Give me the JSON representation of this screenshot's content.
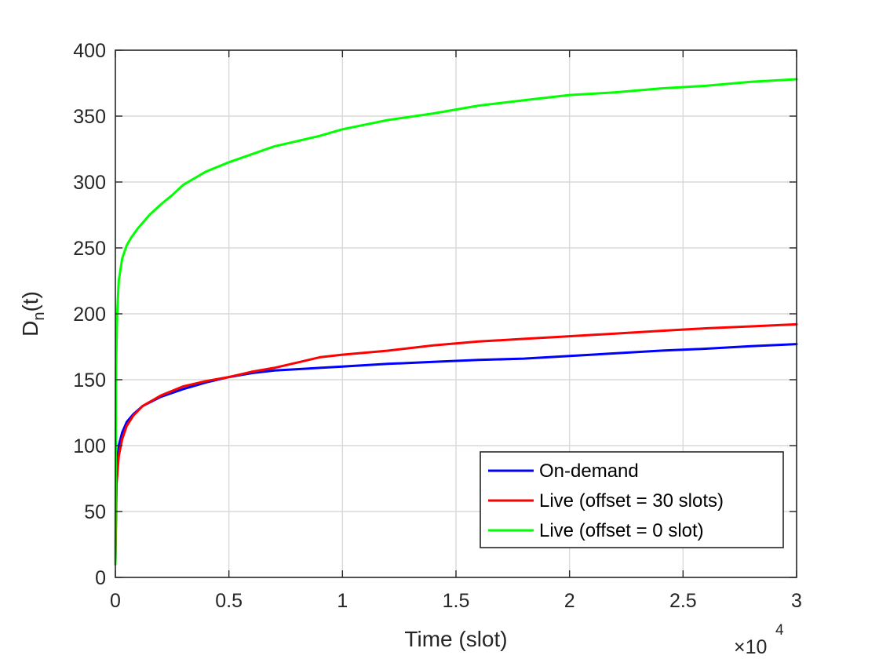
{
  "chart_data": {
    "type": "line",
    "xlabel": "Time (slot)",
    "ylabel_main": "D",
    "ylabel_sub": "n",
    "ylabel_tail": "(t)",
    "x_multiplier_base": "×10",
    "x_multiplier_exp": "4",
    "xlim": [
      0,
      30000
    ],
    "ylim": [
      0,
      400
    ],
    "xticks": [
      0,
      5000,
      10000,
      15000,
      20000,
      25000,
      30000
    ],
    "xtick_labels": [
      "0",
      "0.5",
      "1",
      "1.5",
      "2",
      "2.5",
      "3"
    ],
    "yticks": [
      0,
      50,
      100,
      150,
      200,
      250,
      300,
      350,
      400
    ],
    "ytick_labels": [
      "0",
      "50",
      "100",
      "150",
      "200",
      "250",
      "300",
      "350",
      "400"
    ],
    "grid": true,
    "legend_position": "bottom-right",
    "series": [
      {
        "name": "On-demand",
        "color": "#0000ff",
        "x": [
          0,
          50,
          150,
          300,
          500,
          800,
          1200,
          2000,
          3000,
          4000,
          5000,
          6000,
          7000,
          8000,
          9000,
          10000,
          12000,
          14000,
          16000,
          18000,
          20000,
          22000,
          24000,
          26000,
          28000,
          30000
        ],
        "y": [
          10,
          80,
          100,
          110,
          118,
          124,
          130,
          137,
          143,
          148,
          152,
          155,
          157,
          158,
          159,
          160,
          162,
          163.5,
          165,
          166,
          168,
          170,
          172,
          173.5,
          175.5,
          177
        ]
      },
      {
        "name": "Live (offset = 30 slots)",
        "color": "#ff0000",
        "x": [
          0,
          50,
          150,
          300,
          500,
          800,
          1200,
          2000,
          3000,
          4000,
          5000,
          6000,
          7000,
          8000,
          9000,
          10000,
          12000,
          14000,
          16000,
          18000,
          20000,
          22000,
          24000,
          26000,
          28000,
          30000
        ],
        "y": [
          10,
          70,
          92,
          105,
          115,
          123,
          130,
          138,
          145,
          149,
          152,
          156,
          159,
          163,
          167,
          169,
          172,
          176,
          179,
          181,
          183,
          185,
          187,
          189,
          190.5,
          192
        ]
      },
      {
        "name": "Live (offset = 0 slot)",
        "color": "#00ff00",
        "x": [
          0,
          30,
          80,
          150,
          300,
          500,
          700,
          1000,
          1500,
          2000,
          2500,
          3000,
          4000,
          5000,
          6000,
          7000,
          8000,
          9000,
          10000,
          12000,
          14000,
          16000,
          18000,
          20000,
          22000,
          24000,
          26000,
          28000,
          30000
        ],
        "y": [
          10,
          160,
          200,
          225,
          242,
          252,
          258,
          265,
          275,
          283,
          290,
          298,
          308,
          315,
          321,
          327,
          331,
          335,
          340,
          347,
          352,
          358,
          362,
          366,
          368,
          371,
          373,
          376,
          378
        ]
      }
    ]
  }
}
